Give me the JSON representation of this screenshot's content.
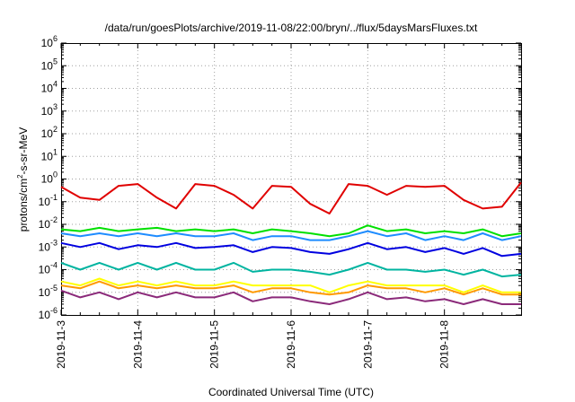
{
  "chart_data": {
    "type": "line",
    "title": "/data/run/goesPlots/archive/2019-11-08/22:00/bryn/../flux/5daysMarsFluxes.txt",
    "xlabel": "Coordinated Universal Time (UTC)",
    "ylabel": {
      "pre": "protons/cm",
      "sup": "2",
      "post": "-s-sr-MeV"
    },
    "yscale": "log",
    "ylim": [
      1e-06,
      1000000.0
    ],
    "xlim": [
      "2019-11-03",
      "2019-11-09"
    ],
    "grid": true,
    "x_tick_labels": [
      "2019-11-3",
      "2019-11-4",
      "2019-11-5",
      "2019-11-6",
      "2019-11-7",
      "2019-11-8"
    ],
    "y_tick_labels": [
      {
        "base": "10",
        "exp": "-6"
      },
      {
        "base": "10",
        "exp": "-5"
      },
      {
        "base": "10",
        "exp": "-4"
      },
      {
        "base": "10",
        "exp": "-3"
      },
      {
        "base": "10",
        "exp": "-2"
      },
      {
        "base": "10",
        "exp": "-1"
      },
      {
        "base": "10",
        "exp": "0"
      },
      {
        "base": "10",
        "exp": "1"
      },
      {
        "base": "10",
        "exp": "2"
      },
      {
        "base": "10",
        "exp": "3"
      },
      {
        "base": "10",
        "exp": "4"
      },
      {
        "base": "10",
        "exp": "5"
      },
      {
        "base": "10",
        "exp": "6"
      }
    ],
    "x_dates": [
      "2019-11-03 00:00",
      "2019-11-03 06:00",
      "2019-11-03 12:00",
      "2019-11-03 18:00",
      "2019-11-04 00:00",
      "2019-11-04 06:00",
      "2019-11-04 12:00",
      "2019-11-04 18:00",
      "2019-11-05 00:00",
      "2019-11-05 06:00",
      "2019-11-05 12:00",
      "2019-11-05 18:00",
      "2019-11-06 00:00",
      "2019-11-06 06:00",
      "2019-11-06 12:00",
      "2019-11-06 18:00",
      "2019-11-07 00:00",
      "2019-11-07 06:00",
      "2019-11-07 12:00",
      "2019-11-07 18:00",
      "2019-11-08 00:00",
      "2019-11-08 06:00",
      "2019-11-08 12:00",
      "2019-11-08 18:00",
      "2019-11-09 00:00"
    ],
    "series": [
      {
        "color": "#e00000",
        "values": [
          0.45,
          0.15,
          0.12,
          0.5,
          0.6,
          0.15,
          0.05,
          0.6,
          0.5,
          0.2,
          0.05,
          0.5,
          0.45,
          0.08,
          0.03,
          0.6,
          0.5,
          0.2,
          0.5,
          0.45,
          0.5,
          0.12,
          0.05,
          0.06,
          0.7
        ]
      },
      {
        "color": "#00e000",
        "values": [
          0.006,
          0.005,
          0.007,
          0.005,
          0.006,
          0.007,
          0.005,
          0.006,
          0.005,
          0.006,
          0.004,
          0.006,
          0.005,
          0.004,
          0.003,
          0.004,
          0.009,
          0.005,
          0.006,
          0.004,
          0.005,
          0.004,
          0.006,
          0.003,
          0.004
        ]
      },
      {
        "color": "#1e8cff",
        "values": [
          0.004,
          0.003,
          0.004,
          0.003,
          0.004,
          0.003,
          0.004,
          0.003,
          0.003,
          0.004,
          0.002,
          0.003,
          0.003,
          0.002,
          0.002,
          0.003,
          0.005,
          0.003,
          0.004,
          0.002,
          0.003,
          0.002,
          0.004,
          0.002,
          0.003
        ]
      },
      {
        "color": "#0000e0",
        "values": [
          0.0015,
          0.001,
          0.0015,
          0.0008,
          0.0012,
          0.001,
          0.0015,
          0.0009,
          0.001,
          0.0012,
          0.0006,
          0.001,
          0.0009,
          0.0006,
          0.0005,
          0.0008,
          0.0015,
          0.0008,
          0.001,
          0.0006,
          0.0009,
          0.0005,
          0.0009,
          0.0004,
          0.0005
        ]
      },
      {
        "color": "#00b4a0",
        "values": [
          0.0002,
          0.0001,
          0.0002,
          0.0001,
          0.0002,
          0.0001,
          0.0002,
          0.0001,
          0.0001,
          0.0002,
          8e-05,
          0.0001,
          0.0001,
          8e-05,
          6e-05,
          0.0001,
          0.0002,
          0.0001,
          0.0001,
          8e-05,
          0.0001,
          6e-05,
          0.0001,
          5e-05,
          6e-05
        ]
      },
      {
        "color": "#ffff00",
        "values": [
          3e-05,
          2e-05,
          4e-05,
          2e-05,
          3e-05,
          2e-05,
          3e-05,
          2e-05,
          2e-05,
          3e-05,
          2e-05,
          2e-05,
          2e-05,
          2e-05,
          1e-05,
          2e-05,
          3e-05,
          2e-05,
          2e-05,
          2e-05,
          2e-05,
          1e-05,
          2e-05,
          1e-05,
          1e-05
        ]
      },
      {
        "color": "#ff9900",
        "values": [
          2e-05,
          1.5e-05,
          3e-05,
          1.5e-05,
          2e-05,
          1.5e-05,
          2e-05,
          1.5e-05,
          1.5e-05,
          2e-05,
          1e-05,
          1.5e-05,
          1.5e-05,
          1e-05,
          8e-06,
          1e-05,
          2e-05,
          1.5e-05,
          1.5e-05,
          1e-05,
          1.5e-05,
          8e-06,
          1.5e-05,
          8e-06,
          8e-06
        ]
      },
      {
        "color": "#8b2a7a",
        "values": [
          1.2e-05,
          6e-06,
          1e-05,
          5e-06,
          1e-05,
          6e-06,
          1e-05,
          6e-06,
          6e-06,
          1e-05,
          4e-06,
          6e-06,
          6e-06,
          4e-06,
          3e-06,
          5e-06,
          1e-05,
          5e-06,
          6e-06,
          4e-06,
          5e-06,
          3e-06,
          5e-06,
          3e-06,
          3e-06
        ]
      }
    ]
  }
}
